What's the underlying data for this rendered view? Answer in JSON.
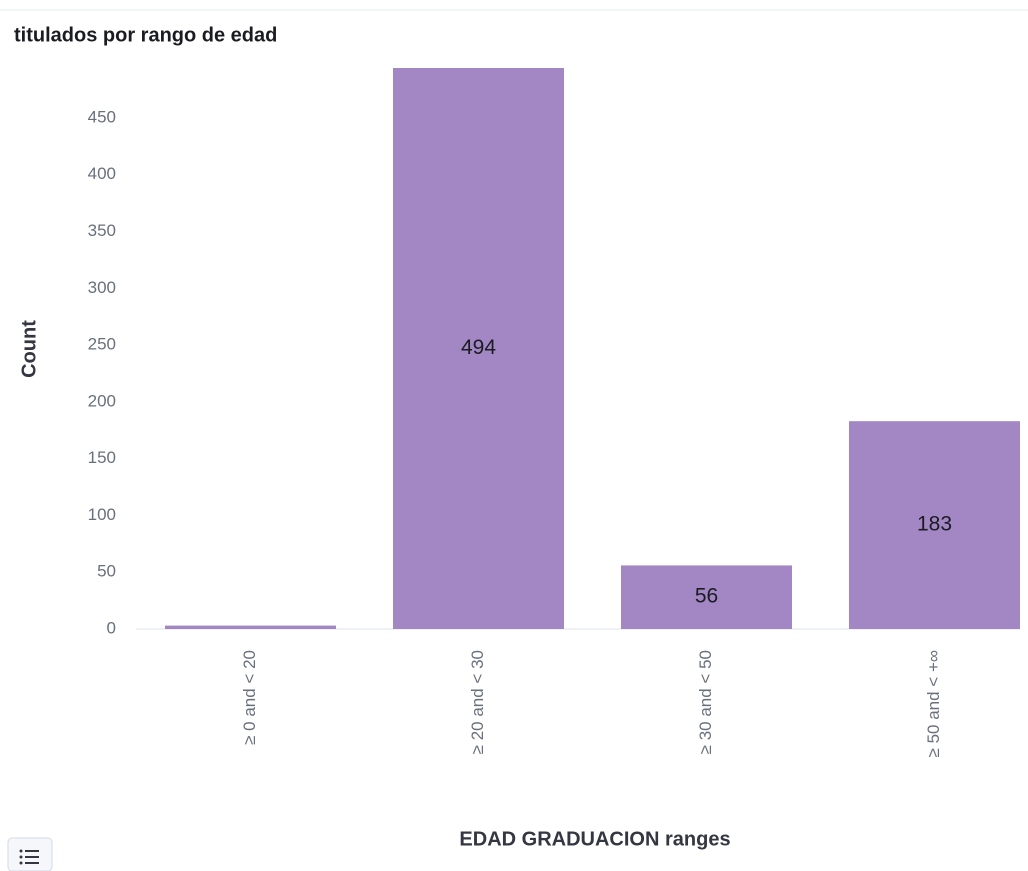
{
  "chart_data": {
    "type": "bar",
    "title": "titulados por rango de edad",
    "y_label": "Count",
    "x_label": "EDAD GRADUACION ranges",
    "categories": [
      "≥ 0 and < 20",
      "≥ 20 and < 30",
      "≥ 30 and < 50",
      "≥ 50 and < +∞"
    ],
    "values": [
      3,
      494,
      56,
      183
    ],
    "color": "#a387c4",
    "ylim": [
      0,
      494
    ],
    "yticks": [
      0,
      50,
      100,
      150,
      200,
      250,
      300,
      350,
      400,
      450
    ],
    "data_labels": true
  }
}
